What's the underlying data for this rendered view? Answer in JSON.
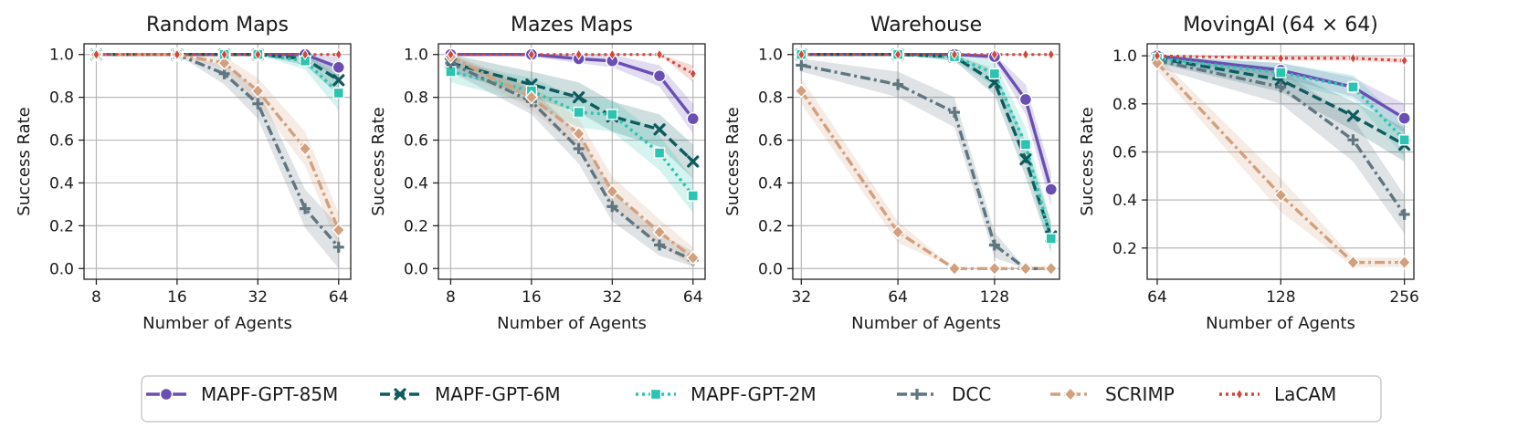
{
  "chart_data": [
    {
      "type": "line",
      "title": "Random Maps",
      "xlabel": "Number of Agents",
      "ylabel": "Success Rate",
      "xscale": "log2",
      "xlim": [
        7.2,
        71
      ],
      "ylim": [
        -0.05,
        1.05
      ],
      "xticks": [
        8,
        16,
        32,
        64
      ],
      "yticks": [
        0.0,
        0.2,
        0.4,
        0.6,
        0.8,
        1.0
      ],
      "ytick_labels": [
        "0.0",
        "0.2",
        "0.4",
        "0.6",
        "0.8",
        "1.0"
      ],
      "grid": true,
      "series": [
        {
          "name": "MAPF-GPT-85M",
          "x": [
            8,
            16,
            24,
            32,
            48,
            64
          ],
          "values": [
            1.0,
            1.0,
            1.0,
            1.0,
            1.0,
            0.94
          ],
          "lower": [
            1.0,
            1.0,
            1.0,
            1.0,
            0.99,
            0.88
          ],
          "upper": [
            1.0,
            1.0,
            1.0,
            1.0,
            1.0,
            0.99
          ]
        },
        {
          "name": "MAPF-GPT-6M",
          "x": [
            8,
            16,
            24,
            32,
            48,
            64
          ],
          "values": [
            1.0,
            1.0,
            1.0,
            1.0,
            0.98,
            0.88
          ],
          "lower": [
            1.0,
            1.0,
            1.0,
            1.0,
            0.95,
            0.81
          ],
          "upper": [
            1.0,
            1.0,
            1.0,
            1.0,
            1.0,
            0.94
          ]
        },
        {
          "name": "MAPF-GPT-2M",
          "x": [
            8,
            16,
            24,
            32,
            48,
            64
          ],
          "values": [
            1.0,
            1.0,
            1.0,
            1.0,
            0.97,
            0.82
          ],
          "lower": [
            1.0,
            1.0,
            1.0,
            1.0,
            0.93,
            0.74
          ],
          "upper": [
            1.0,
            1.0,
            1.0,
            1.0,
            1.0,
            0.9
          ]
        },
        {
          "name": "DCC",
          "x": [
            8,
            16,
            24,
            32,
            48,
            64
          ],
          "values": [
            1.0,
            1.0,
            0.91,
            0.77,
            0.28,
            0.1
          ],
          "lower": [
            1.0,
            1.0,
            0.86,
            0.7,
            0.19,
            0.0
          ],
          "upper": [
            1.0,
            1.0,
            0.95,
            0.84,
            0.37,
            0.2
          ]
        },
        {
          "name": "SCRIMP",
          "x": [
            8,
            16,
            24,
            32,
            48,
            64
          ],
          "values": [
            1.0,
            1.0,
            0.96,
            0.83,
            0.56,
            0.18
          ],
          "lower": [
            1.0,
            1.0,
            0.93,
            0.77,
            0.48,
            0.1
          ],
          "upper": [
            1.0,
            1.0,
            0.99,
            0.89,
            0.64,
            0.26
          ]
        },
        {
          "name": "LaCAM",
          "x": [
            8,
            16,
            24,
            32,
            48,
            64
          ],
          "values": [
            1.0,
            1.0,
            1.0,
            1.0,
            1.0,
            1.0
          ],
          "lower": [
            1.0,
            1.0,
            1.0,
            1.0,
            1.0,
            1.0
          ],
          "upper": [
            1.0,
            1.0,
            1.0,
            1.0,
            1.0,
            1.0
          ]
        }
      ]
    },
    {
      "type": "line",
      "title": "Mazes Maps",
      "xlabel": "Number of Agents",
      "ylabel": "Success Rate",
      "xscale": "log2",
      "xlim": [
        7.2,
        71
      ],
      "ylim": [
        -0.05,
        1.05
      ],
      "xticks": [
        8,
        16,
        32,
        64
      ],
      "yticks": [
        0.0,
        0.2,
        0.4,
        0.6,
        0.8,
        1.0
      ],
      "ytick_labels": [
        "0.0",
        "0.2",
        "0.4",
        "0.6",
        "0.8",
        "1.0"
      ],
      "grid": true,
      "series": [
        {
          "name": "MAPF-GPT-85M",
          "x": [
            8,
            16,
            24,
            32,
            48,
            64
          ],
          "values": [
            1.0,
            1.0,
            0.98,
            0.97,
            0.9,
            0.7
          ],
          "lower": [
            1.0,
            0.99,
            0.96,
            0.94,
            0.85,
            0.63
          ],
          "upper": [
            1.0,
            1.0,
            1.0,
            1.0,
            0.95,
            0.77
          ]
        },
        {
          "name": "MAPF-GPT-6M",
          "x": [
            8,
            16,
            24,
            32,
            48,
            64
          ],
          "values": [
            0.96,
            0.86,
            0.8,
            0.71,
            0.65,
            0.5
          ],
          "lower": [
            0.92,
            0.8,
            0.73,
            0.64,
            0.57,
            0.42
          ],
          "upper": [
            1.0,
            0.92,
            0.87,
            0.78,
            0.72,
            0.58
          ]
        },
        {
          "name": "MAPF-GPT-2M",
          "x": [
            8,
            16,
            24,
            32,
            48,
            64
          ],
          "values": [
            0.92,
            0.83,
            0.73,
            0.72,
            0.54,
            0.34
          ],
          "lower": [
            0.87,
            0.77,
            0.66,
            0.64,
            0.46,
            0.26
          ],
          "upper": [
            0.97,
            0.89,
            0.8,
            0.79,
            0.62,
            0.42
          ]
        },
        {
          "name": "DCC",
          "x": [
            8,
            16,
            24,
            32,
            48,
            64
          ],
          "values": [
            0.96,
            0.78,
            0.56,
            0.29,
            0.11,
            0.04
          ],
          "lower": [
            0.92,
            0.72,
            0.49,
            0.22,
            0.06,
            0.01
          ],
          "upper": [
            1.0,
            0.84,
            0.63,
            0.36,
            0.16,
            0.08
          ]
        },
        {
          "name": "SCRIMP",
          "x": [
            8,
            16,
            24,
            32,
            48,
            64
          ],
          "values": [
            0.99,
            0.8,
            0.63,
            0.36,
            0.17,
            0.05
          ],
          "lower": [
            0.96,
            0.74,
            0.56,
            0.29,
            0.11,
            0.01
          ],
          "upper": [
            1.0,
            0.86,
            0.7,
            0.43,
            0.23,
            0.1
          ]
        },
        {
          "name": "LaCAM",
          "x": [
            8,
            16,
            24,
            32,
            48,
            64
          ],
          "values": [
            1.0,
            1.0,
            1.0,
            1.0,
            1.0,
            0.91
          ],
          "lower": [
            1.0,
            1.0,
            1.0,
            1.0,
            1.0,
            0.87
          ],
          "upper": [
            1.0,
            1.0,
            1.0,
            1.0,
            1.0,
            0.95
          ]
        }
      ]
    },
    {
      "type": "line",
      "title": "Warehouse",
      "xlabel": "Number of Agents",
      "ylabel": "Success Rate",
      "xscale": "log2",
      "xlim": [
        30.1,
        204
      ],
      "ylim": [
        -0.05,
        1.05
      ],
      "xticks": [
        32,
        64,
        128
      ],
      "yticks": [
        0.0,
        0.2,
        0.4,
        0.6,
        0.8,
        1.0
      ],
      "ytick_labels": [
        "0.0",
        "0.2",
        "0.4",
        "0.6",
        "0.8",
        "1.0"
      ],
      "grid": true,
      "series": [
        {
          "name": "MAPF-GPT-85M",
          "x": [
            32,
            64,
            96,
            128,
            160,
            192
          ],
          "values": [
            1.0,
            1.0,
            1.0,
            0.99,
            0.79,
            0.37
          ],
          "lower": [
            1.0,
            1.0,
            1.0,
            0.97,
            0.72,
            0.29
          ],
          "upper": [
            1.0,
            1.0,
            1.0,
            1.0,
            0.86,
            0.45
          ]
        },
        {
          "name": "MAPF-GPT-6M",
          "x": [
            32,
            64,
            96,
            128,
            160,
            192
          ],
          "values": [
            1.0,
            1.0,
            0.99,
            0.87,
            0.51,
            0.15
          ],
          "lower": [
            1.0,
            1.0,
            0.97,
            0.81,
            0.43,
            0.08
          ],
          "upper": [
            1.0,
            1.0,
            1.0,
            0.93,
            0.59,
            0.22
          ]
        },
        {
          "name": "MAPF-GPT-2M",
          "x": [
            32,
            64,
            96,
            128,
            160,
            192
          ],
          "values": [
            1.0,
            1.0,
            0.99,
            0.91,
            0.58,
            0.14
          ],
          "lower": [
            1.0,
            1.0,
            0.97,
            0.85,
            0.5,
            0.07
          ],
          "upper": [
            1.0,
            1.0,
            1.0,
            0.97,
            0.66,
            0.21
          ]
        },
        {
          "name": "DCC",
          "x": [
            32,
            64,
            96,
            128,
            160,
            192
          ],
          "values": [
            0.95,
            0.86,
            0.73,
            0.11,
            0.0,
            0.0
          ],
          "lower": [
            0.92,
            0.8,
            0.66,
            0.05,
            0.0,
            0.0
          ],
          "upper": [
            0.98,
            0.92,
            0.8,
            0.17,
            0.0,
            0.0
          ]
        },
        {
          "name": "SCRIMP",
          "x": [
            32,
            64,
            96,
            128,
            160,
            192
          ],
          "values": [
            0.83,
            0.17,
            0.0,
            0.0,
            0.0,
            0.0
          ],
          "lower": [
            0.77,
            0.12,
            0.0,
            0.0,
            0.0,
            0.0
          ],
          "upper": [
            0.89,
            0.22,
            0.0,
            0.0,
            0.0,
            0.0
          ]
        },
        {
          "name": "LaCAM",
          "x": [
            32,
            64,
            96,
            128,
            160,
            192
          ],
          "values": [
            1.0,
            1.0,
            1.0,
            1.0,
            1.0,
            1.0
          ],
          "lower": [
            1.0,
            1.0,
            1.0,
            1.0,
            1.0,
            1.0
          ],
          "upper": [
            1.0,
            1.0,
            1.0,
            1.0,
            1.0,
            1.0
          ]
        }
      ]
    },
    {
      "type": "line",
      "title": "MovingAI (64 × 64)",
      "xlabel": "Number of Agents",
      "ylabel": "Success Rate",
      "xscale": "log2",
      "xlim": [
        60.5,
        270
      ],
      "ylim": [
        0.07,
        1.05
      ],
      "xticks": [
        64,
        128,
        256
      ],
      "yticks": [
        0.2,
        0.4,
        0.6,
        0.8,
        1.0
      ],
      "ytick_labels": [
        "0.2",
        "0.4",
        "0.6",
        "0.8",
        "1.0"
      ],
      "grid": true,
      "series": [
        {
          "name": "MAPF-GPT-85M",
          "x": [
            64,
            128,
            192,
            256
          ],
          "values": [
            1.0,
            0.94,
            0.87,
            0.74
          ],
          "lower": [
            0.99,
            0.91,
            0.83,
            0.68
          ],
          "upper": [
            1.0,
            0.97,
            0.91,
            0.8
          ]
        },
        {
          "name": "MAPF-GPT-6M",
          "x": [
            64,
            128,
            192,
            256
          ],
          "values": [
            0.99,
            0.9,
            0.75,
            0.63
          ],
          "lower": [
            0.97,
            0.85,
            0.69,
            0.56
          ],
          "upper": [
            1.0,
            0.95,
            0.81,
            0.7
          ]
        },
        {
          "name": "MAPF-GPT-2M",
          "x": [
            64,
            128,
            192,
            256
          ],
          "values": [
            0.99,
            0.93,
            0.87,
            0.65
          ],
          "lower": [
            0.97,
            0.89,
            0.82,
            0.58
          ],
          "upper": [
            1.0,
            0.97,
            0.92,
            0.72
          ]
        },
        {
          "name": "DCC",
          "x": [
            64,
            128,
            192,
            256
          ],
          "values": [
            0.98,
            0.87,
            0.65,
            0.34
          ],
          "lower": [
            0.95,
            0.8,
            0.56,
            0.26
          ],
          "upper": [
            1.0,
            0.94,
            0.74,
            0.42
          ]
        },
        {
          "name": "SCRIMP",
          "x": [
            64,
            128,
            192,
            256
          ],
          "values": [
            0.97,
            0.42,
            0.14,
            0.14
          ],
          "lower": [
            0.94,
            0.35,
            0.12,
            0.12
          ],
          "upper": [
            1.0,
            0.49,
            0.16,
            0.16
          ]
        },
        {
          "name": "LaCAM",
          "x": [
            64,
            128,
            192,
            256
          ],
          "values": [
            1.0,
            0.99,
            0.99,
            0.98
          ],
          "lower": [
            1.0,
            0.98,
            0.98,
            0.97
          ],
          "upper": [
            1.0,
            1.0,
            1.0,
            0.99
          ]
        }
      ]
    }
  ],
  "legend": {
    "placement": "bottom-center",
    "entries": [
      {
        "label": "MAPF-GPT-85M",
        "color": "#6a4fb3",
        "dash": "solid",
        "marker": "circle"
      },
      {
        "label": "MAPF-GPT-6M",
        "color": "#0f5a5e",
        "dash": "dashed",
        "marker": "x"
      },
      {
        "label": "MAPF-GPT-2M",
        "color": "#2bc4b0",
        "dash": "dotted",
        "marker": "square"
      },
      {
        "label": "DCC",
        "color": "#5f7580",
        "dash": "dashdot",
        "marker": "plus"
      },
      {
        "label": "SCRIMP",
        "color": "#d2a07e",
        "dash": "dashdot",
        "marker": "diamond"
      },
      {
        "label": "LaCAM",
        "color": "#d0463c",
        "dash": "dotted",
        "marker": "thin-diamond"
      }
    ]
  }
}
